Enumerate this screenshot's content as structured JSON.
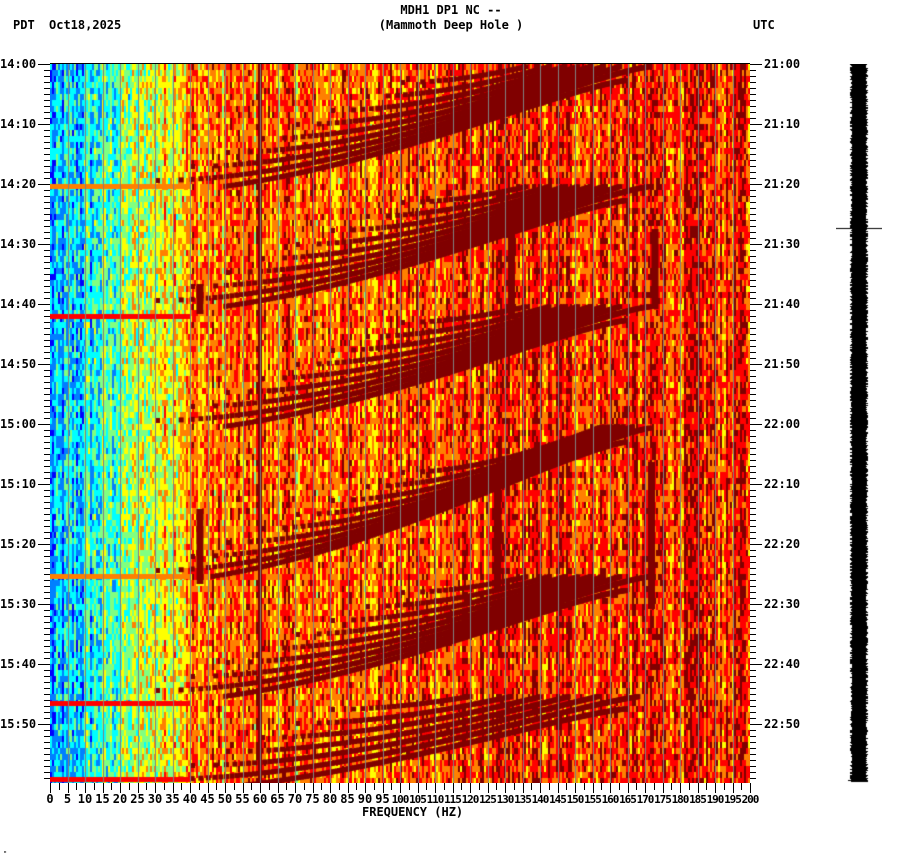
{
  "header": {
    "title_line1": "MDH1 DP1 NC --",
    "title_line2": "(Mammoth Deep Hole )",
    "left_timezone": "PDT",
    "date": "Oct18,2025",
    "right_timezone": "UTC"
  },
  "footer": {
    "mark": "\""
  },
  "colors": {
    "background": "#ffffff",
    "colormap": [
      "#0000ff",
      "#0080ff",
      "#00ffff",
      "#80ff80",
      "#ffff00",
      "#ff8000",
      "#ff0000",
      "#800000"
    ],
    "gridline": "#808080",
    "seismogram": "#000000"
  },
  "chart_data": {
    "type": "heatmap",
    "title": "MDH1 DP1 NC -- (Mammoth Deep Hole )",
    "xlabel": "FREQUENCY (HZ)",
    "ylabel_left": "PDT",
    "ylabel_right": "UTC",
    "xlim": [
      0,
      200
    ],
    "x_ticks": [
      0,
      5,
      10,
      15,
      20,
      25,
      30,
      35,
      40,
      45,
      50,
      55,
      60,
      65,
      70,
      75,
      80,
      85,
      90,
      95,
      100,
      105,
      110,
      115,
      120,
      125,
      130,
      135,
      140,
      145,
      150,
      155,
      160,
      165,
      170,
      175,
      180,
      185,
      190,
      195,
      200
    ],
    "y_ticks_left": [
      "14:00",
      "14:10",
      "14:20",
      "14:30",
      "14:40",
      "14:50",
      "15:00",
      "15:10",
      "15:20",
      "15:30",
      "15:40",
      "15:50"
    ],
    "y_ticks_right": [
      "21:00",
      "21:10",
      "21:20",
      "21:30",
      "21:40",
      "21:50",
      "22:00",
      "22:10",
      "22:20",
      "22:30",
      "22:40",
      "22:50"
    ],
    "time_range_pdt": [
      "14:00",
      "16:00"
    ],
    "time_range_utc": [
      "21:00",
      "23:00"
    ],
    "date": "Oct18,2025",
    "colormap": "jet (blue=low, dark red=high)",
    "features": [
      {
        "description": "Low-power blue/cyan band",
        "freq_hz": [
          0,
          20
        ]
      },
      {
        "description": "Persistent dark-red narrow line",
        "freq_hz": 60
      },
      {
        "description": "Repeating chirp arcs (sweeps) restarting every ~20 min",
        "start_times_pdt": [
          "14:00",
          "14:20",
          "14:40",
          "15:00",
          "15:25",
          "15:45"
        ],
        "freq_hz": [
          20,
          140
        ]
      },
      {
        "description": "Vertical dark-red streak",
        "freq_hz": 132,
        "time_pdt": [
          "14:27",
          "14:42"
        ]
      },
      {
        "description": "Vertical dark-red streak",
        "freq_hz": 173,
        "time_pdt": [
          "14:27",
          "14:40"
        ]
      },
      {
        "description": "Vertical dark-red streak",
        "freq_hz": 128,
        "time_pdt": [
          "15:07",
          "15:28"
        ]
      },
      {
        "description": "Vertical dark-red streak",
        "freq_hz": 172,
        "time_pdt": [
          "15:07",
          "15:30"
        ]
      }
    ]
  }
}
